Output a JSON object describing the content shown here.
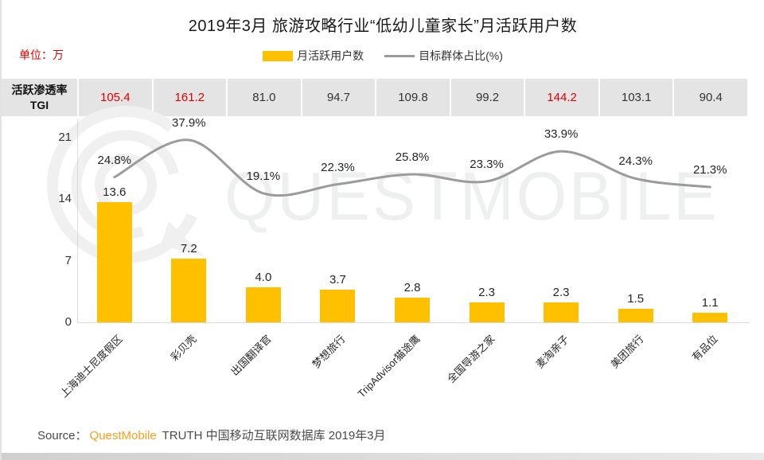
{
  "title": "2019年3月 旅游攻略行业“低幼儿童家长”月活跃用户数",
  "unit_label": "单位：万",
  "legend": {
    "bar": "月活跃用户数",
    "line": "目标群体占比(%)"
  },
  "tgi": {
    "header_line1": "活跃渗透率",
    "header_line2": "TGI",
    "values": [
      {
        "value": "105.4",
        "red": true
      },
      {
        "value": "161.2",
        "red": true
      },
      {
        "value": "81.0",
        "red": false
      },
      {
        "value": "94.7",
        "red": false
      },
      {
        "value": "109.8",
        "red": false
      },
      {
        "value": "99.2",
        "red": false
      },
      {
        "value": "144.2",
        "red": true
      },
      {
        "value": "103.1",
        "red": false
      },
      {
        "value": "90.4",
        "red": false
      }
    ]
  },
  "watermark": {
    "logo": "questmobile-logo",
    "text": "QUESTMOBILE"
  },
  "source": {
    "prefix": "Source：",
    "brand": "QuestMobile",
    "suffix": " TRUTH 中国移动互联网数据库 2019年3月"
  },
  "colors": {
    "bar": "#FFC000",
    "line": "#9B9B9B",
    "red": "#E00000",
    "row_bg": "#E4E4E4",
    "brand_orange": "#F7A11A"
  },
  "chart_data": {
    "type": "bar",
    "title": "2019年3月 旅游攻略行业“低幼儿童家长”月活跃用户数",
    "ylabel": "月活跃用户数(万)",
    "categories": [
      "上海迪士尼度假区",
      "彩贝壳",
      "出国翻译官",
      "梦想旅行",
      "TripAdvisor猫途鹰",
      "全国导游之家",
      "麦淘亲子",
      "美团旅行",
      "有品位"
    ],
    "series": [
      {
        "name": "月活跃用户数",
        "type": "bar",
        "values": [
          13.6,
          7.2,
          4.0,
          3.7,
          2.8,
          2.3,
          2.3,
          1.5,
          1.1
        ]
      },
      {
        "name": "目标群体占比(%)",
        "type": "line",
        "values": [
          24.8,
          37.9,
          19.1,
          22.3,
          25.8,
          23.3,
          33.9,
          24.3,
          21.3
        ]
      },
      {
        "name": "活跃渗透率TGI",
        "type": "table",
        "values": [
          105.4,
          161.2,
          81.0,
          94.7,
          109.8,
          99.2,
          144.2,
          103.1,
          90.4
        ]
      }
    ],
    "ylim": [
      0,
      21
    ],
    "yticks": [
      0,
      7,
      14,
      21
    ],
    "grid": false,
    "legend_position": "top"
  }
}
